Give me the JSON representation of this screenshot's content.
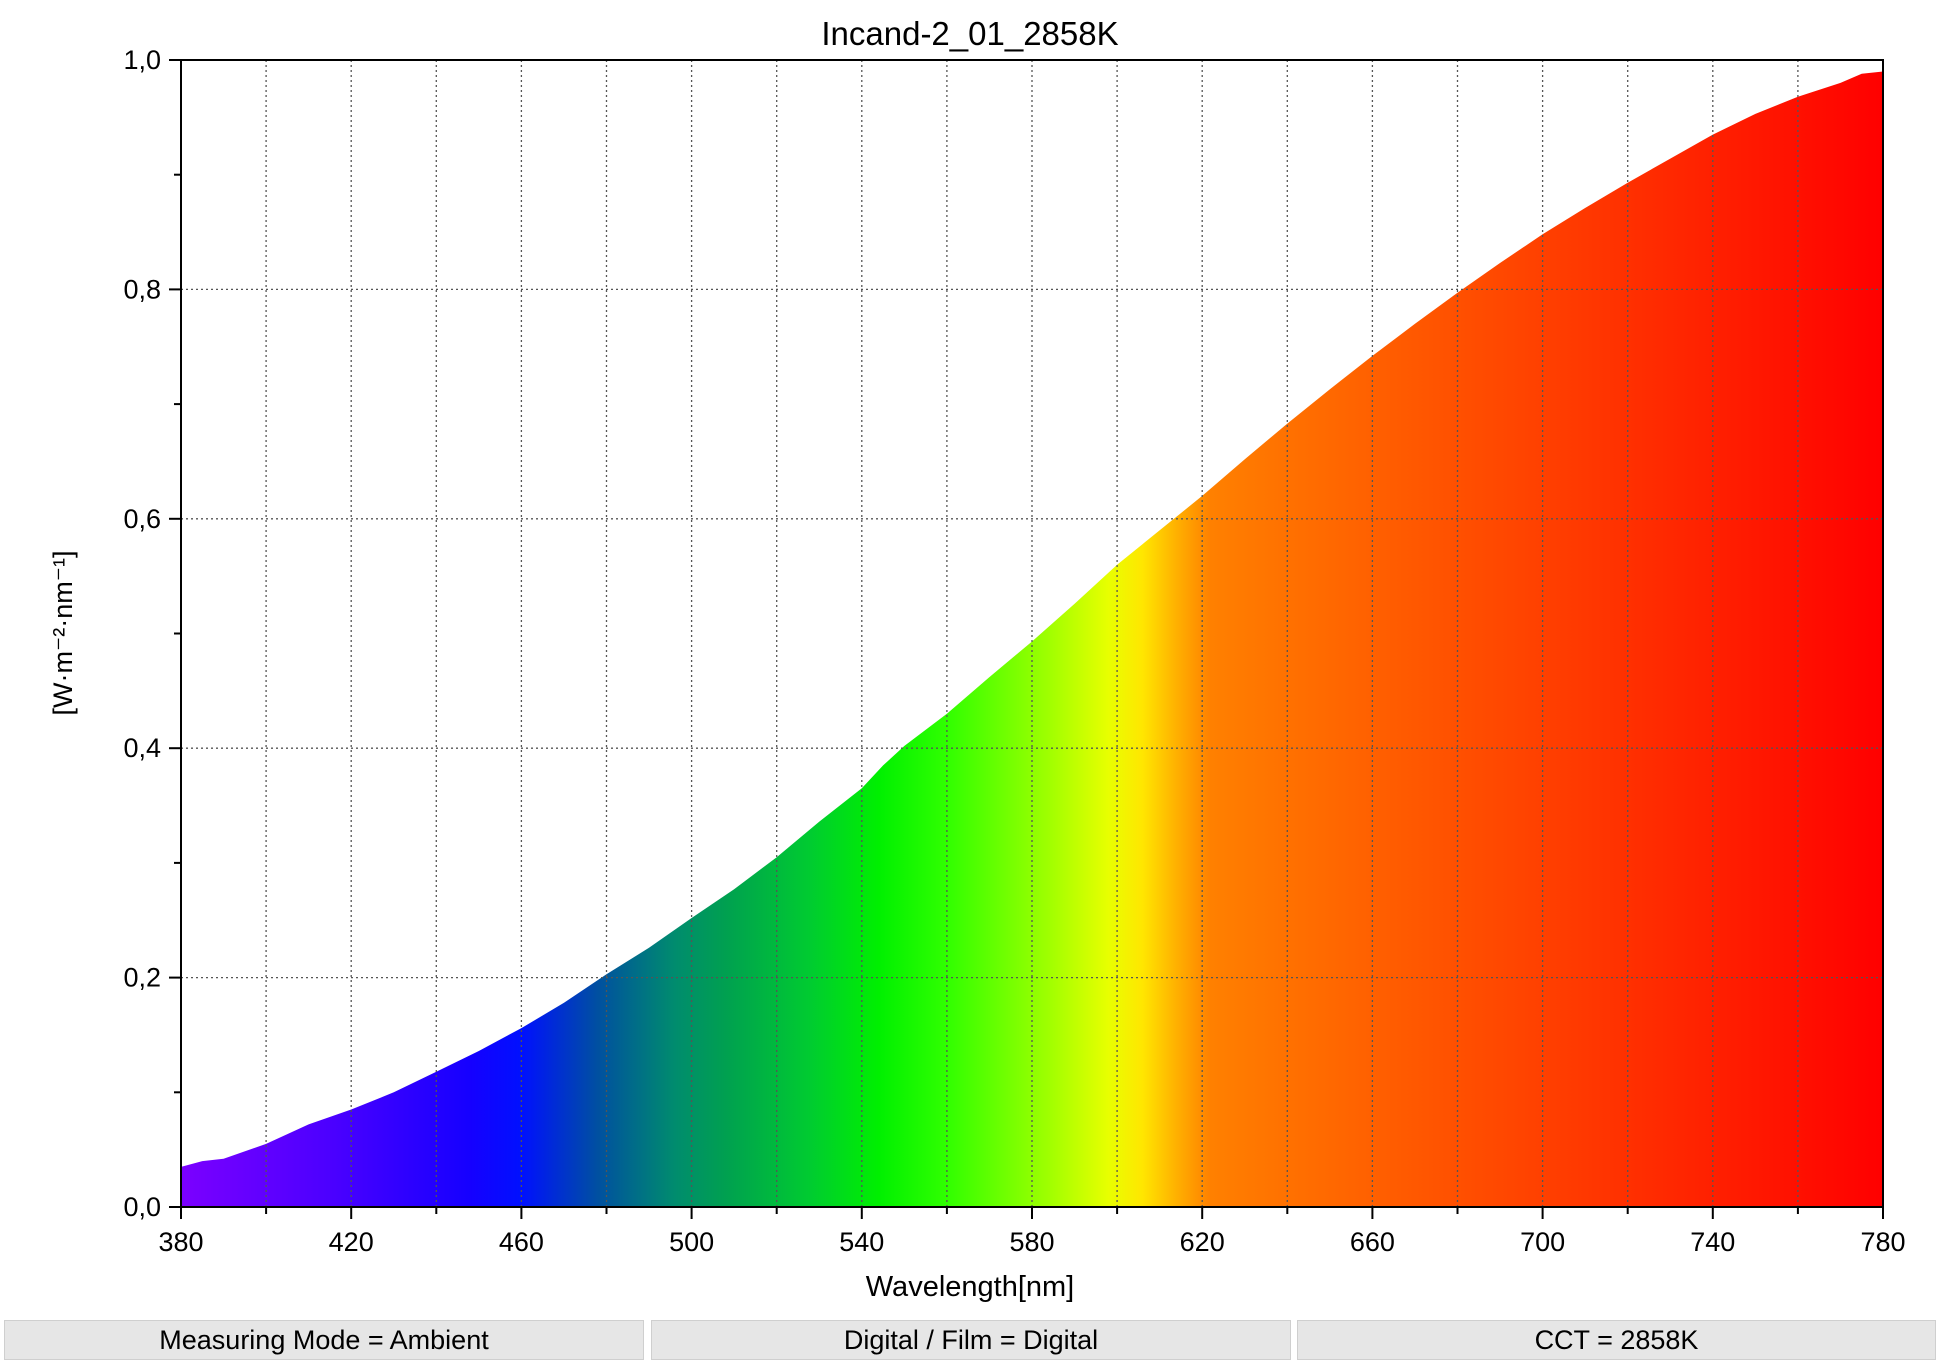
{
  "chart_data": {
    "type": "area",
    "title": "Incand-2_01_2858K",
    "xlabel": "Wavelength[nm]",
    "ylabel": "[W·m⁻²·nm⁻¹]",
    "xlim": [
      380,
      780
    ],
    "ylim": [
      0,
      1
    ],
    "grid": true,
    "x_ticks": [
      380,
      420,
      460,
      500,
      540,
      580,
      620,
      660,
      700,
      740,
      780
    ],
    "x_tick_labels": [
      "380",
      "420",
      "460",
      "500",
      "540",
      "580",
      "620",
      "660",
      "700",
      "740",
      "780"
    ],
    "y_ticks": [
      0,
      0.2,
      0.4,
      0.6,
      0.8,
      1.0
    ],
    "y_tick_labels": [
      "0,0",
      "0,2",
      "0,4",
      "0,6",
      "0,8",
      "1,0"
    ],
    "fill": "visible-spectrum gradient (wavelength colour)",
    "series": [
      {
        "x": [
          380,
          385,
          390,
          400,
          410,
          420,
          430,
          440,
          450,
          460,
          470,
          480,
          490,
          500,
          510,
          520,
          530,
          540,
          545,
          550,
          560,
          570,
          580,
          590,
          600,
          610,
          620,
          630,
          640,
          650,
          660,
          670,
          680,
          690,
          700,
          710,
          720,
          730,
          740,
          750,
          760,
          770,
          775,
          780
        ],
        "y": [
          0.035,
          0.04,
          0.042,
          0.055,
          0.072,
          0.085,
          0.1,
          0.118,
          0.136,
          0.156,
          0.178,
          0.203,
          0.226,
          0.252,
          0.277,
          0.305,
          0.336,
          0.365,
          0.385,
          0.402,
          0.43,
          0.462,
          0.493,
          0.526,
          0.56,
          0.59,
          0.62,
          0.652,
          0.683,
          0.713,
          0.742,
          0.77,
          0.797,
          0.823,
          0.848,
          0.871,
          0.893,
          0.914,
          0.935,
          0.953,
          0.968,
          0.98,
          0.988,
          0.99
        ]
      }
    ]
  },
  "status_bar": {
    "measuring_mode": "Measuring Mode = Ambient",
    "digital_film": "Digital / Film = Digital",
    "cct": "CCT = 2858K"
  }
}
